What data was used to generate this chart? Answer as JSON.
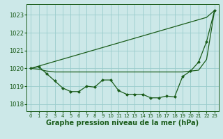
{
  "background_color": "#cce8e8",
  "grid_color": "#99cccc",
  "line_color": "#1a5c1a",
  "marker_color": "#1a5c1a",
  "xlabel": "Graphe pression niveau de la mer (hPa)",
  "xlabel_fontsize": 7.0,
  "ylim": [
    1017.6,
    1023.6
  ],
  "xlim": [
    -0.5,
    23.5
  ],
  "yticks": [
    1018,
    1019,
    1020,
    1021,
    1022,
    1023
  ],
  "xticks": [
    0,
    1,
    2,
    3,
    4,
    5,
    6,
    7,
    8,
    9,
    10,
    11,
    12,
    13,
    14,
    15,
    16,
    17,
    18,
    19,
    20,
    21,
    22,
    23
  ],
  "series1_markers": [
    1020.0,
    1020.1,
    1019.7,
    1019.3,
    1018.9,
    1018.7,
    1018.7,
    1019.0,
    1018.95,
    1019.35,
    1019.35,
    1018.75,
    1018.55,
    1018.55,
    1018.55,
    1018.35,
    1018.35,
    1018.45,
    1018.4,
    1019.55,
    1019.85,
    1020.35,
    1021.5,
    1023.25
  ],
  "series2_line": [
    1020.0,
    1020.13,
    1020.26,
    1020.39,
    1020.52,
    1020.65,
    1020.78,
    1020.91,
    1021.04,
    1021.17,
    1021.3,
    1021.43,
    1021.56,
    1021.69,
    1021.82,
    1021.95,
    1022.08,
    1022.21,
    1022.34,
    1022.47,
    1022.6,
    1022.73,
    1022.86,
    1023.25
  ],
  "series3_flat": [
    1020.0,
    1019.95,
    1019.85,
    1019.8,
    1019.8,
    1019.8,
    1019.8,
    1019.8,
    1019.8,
    1019.8,
    1019.8,
    1019.8,
    1019.8,
    1019.8,
    1019.8,
    1019.8,
    1019.8,
    1019.8,
    1019.8,
    1019.8,
    1019.85,
    1019.9,
    1020.5,
    1023.25
  ]
}
